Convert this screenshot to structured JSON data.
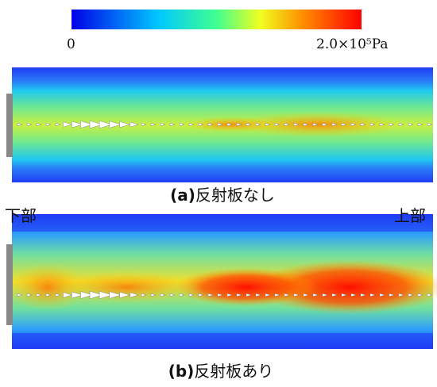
{
  "colorbar": {
    "min_label": "0",
    "max_label": "2.0×10⁵Pa"
  },
  "panels": [
    {
      "tag": "(a)",
      "caption": "反射板なし"
    },
    {
      "tag": "(b)",
      "caption": "反射板あり"
    }
  ],
  "side_labels": {
    "left": "下部",
    "right": "上部"
  }
}
